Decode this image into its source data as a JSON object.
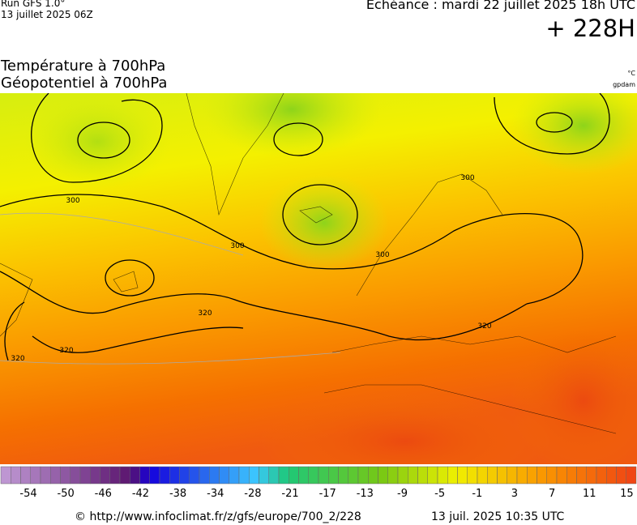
{
  "header": {
    "run": "Run GFS 1.0°",
    "run_date": "13 juillet 2025 06Z",
    "echeance": "Echéance : mardi 22 juillet 2025 18h UTC",
    "lead": "+ 228H",
    "title_line1": "Température à 700hPa",
    "title_line2": "Géopotentiel à 700hPa",
    "unit_temperature": "°C",
    "unit_geopotential": "gpdam"
  },
  "map": {
    "contour_labels": [
      "300",
      "300",
      "300",
      "300",
      "320",
      "320",
      "320",
      "320"
    ]
  },
  "colorbar": {
    "labels": [
      -54,
      -50,
      -46,
      -42,
      -38,
      -34,
      -28,
      -21,
      -17,
      -13,
      -9,
      -5,
      -1,
      3,
      7,
      11,
      15
    ]
  },
  "footer": {
    "source": "© http://www.infoclimat.fr/z/gfs/europe/700_2/228",
    "generated": "13 juil. 2025 10:35 UTC"
  }
}
